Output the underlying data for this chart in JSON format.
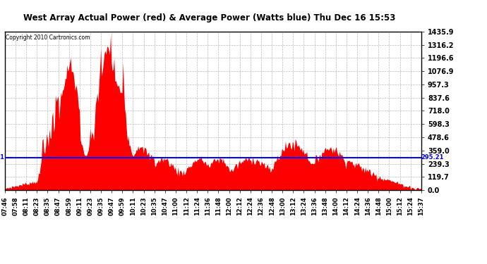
{
  "title": "West Array Actual Power (red) & Average Power (Watts blue) Thu Dec 16 15:53",
  "copyright_text": "Copyright 2010 Cartronics.com",
  "avg_power": 295.21,
  "ymax": 1435.9,
  "yticks": [
    0.0,
    119.7,
    239.3,
    359.0,
    478.6,
    598.3,
    718.0,
    837.6,
    957.3,
    1076.9,
    1196.6,
    1316.2,
    1435.9
  ],
  "fill_color": "#FF0000",
  "line_color": "#0000FF",
  "avg_label_color": "#0000FF",
  "background_color": "#FFFFFF",
  "grid_color": "#BBBBBB",
  "xtick_labels": [
    "07:46",
    "07:58",
    "08:11",
    "08:23",
    "08:35",
    "08:47",
    "08:59",
    "09:11",
    "09:23",
    "09:35",
    "09:47",
    "09:59",
    "10:11",
    "10:23",
    "10:35",
    "10:47",
    "11:00",
    "11:12",
    "11:24",
    "11:36",
    "11:48",
    "12:00",
    "12:12",
    "12:24",
    "12:36",
    "12:48",
    "13:00",
    "13:12",
    "13:24",
    "13:36",
    "13:48",
    "14:00",
    "14:12",
    "14:24",
    "14:36",
    "14:48",
    "15:00",
    "15:12",
    "15:24",
    "15:37"
  ]
}
